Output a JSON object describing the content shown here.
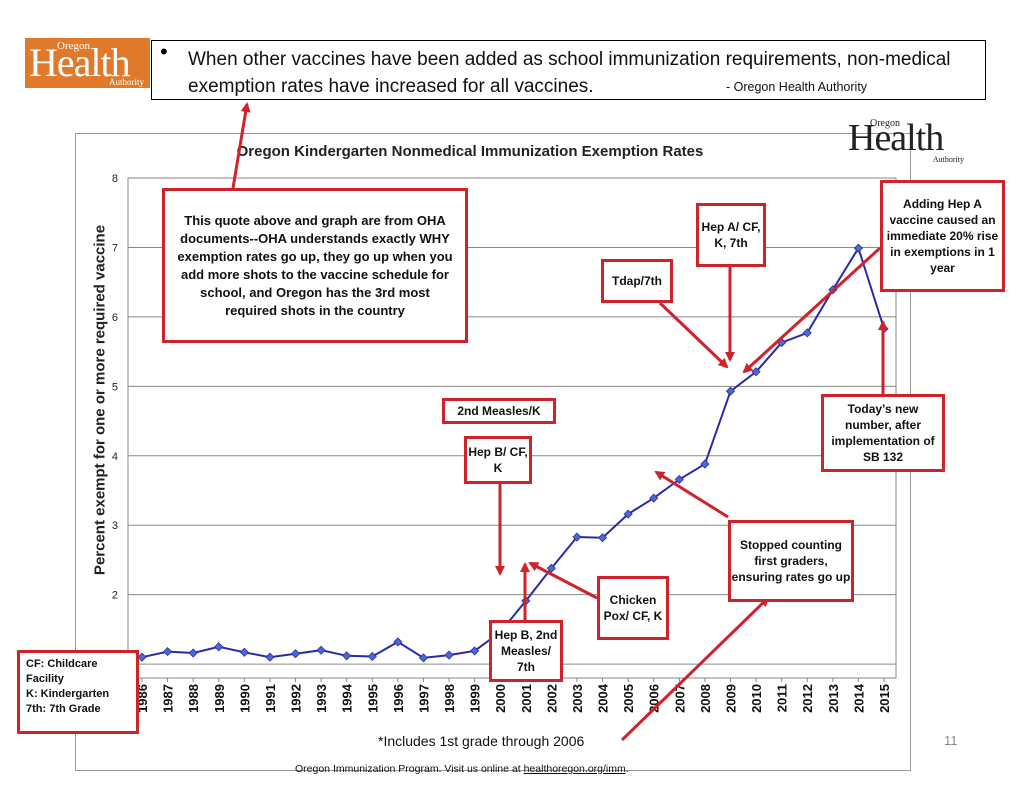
{
  "quote": {
    "text": "When other vaccines have been added as school immunization requirements, non-medical exemption rates have increased for all vaccines.",
    "source": "- Oregon Health Authority"
  },
  "logo": {
    "small": "Oregon",
    "big": "Health",
    "sub": "Authority"
  },
  "chart_data": {
    "type": "line",
    "title": "Oregon Kindergarten Nonmedical Immunization Exemption Rates",
    "ylabel": "Percent exempt for one or more required vaccine",
    "xlabel": "*Includes 1st grade through 2006",
    "ylim": [
      0.8,
      8
    ],
    "yticks": [
      "1",
      "2",
      "3",
      "4",
      "5",
      "6",
      "7",
      "8"
    ],
    "categories": [
      "1986",
      "1987",
      "1988",
      "1989",
      "1990",
      "1991",
      "1992",
      "1993",
      "1994",
      "1995",
      "1996",
      "1997",
      "1998",
      "1999",
      "2000",
      "2001",
      "2002",
      "2003",
      "2004",
      "2005",
      "2006",
      "2007",
      "2008",
      "2009",
      "2010",
      "2011",
      "2012",
      "2013",
      "2014",
      "2015"
    ],
    "values": [
      1.1,
      1.18,
      1.16,
      1.25,
      1.17,
      1.1,
      1.15,
      1.2,
      1.12,
      1.11,
      1.32,
      1.09,
      1.13,
      1.19,
      1.46,
      1.91,
      2.38,
      2.83,
      2.82,
      3.16,
      3.39,
      3.66,
      3.88,
      4.93,
      5.21,
      5.63,
      5.77,
      6.39,
      6.99,
      5.83
    ],
    "grid": true,
    "line_color": "#2a2aa8"
  },
  "annotations": {
    "quote_note": "This quote above and graph are from OHA documents--OHA understands exactly WHY exemption rates go up, they go up when you add more shots to the vaccine schedule for school, and Oregon has the 3rd most required shots in the country",
    "measles": "2nd Measles/K",
    "hepb_k": "Hep B/ CF, K",
    "hepb_7": "Hep B, 2nd Measles/ 7th",
    "chickenpox": "Chicken Pox/ CF, K",
    "tdap": "Tdap/7th",
    "hepa": "Hep A/ CF, K, 7th",
    "hepa_rise": "Adding Hep A vaccine caused an immediate 20% rise in exemptions in 1 year",
    "new_number": "Today’s new number, after implementation of SB 132",
    "stopped": "Stopped counting first graders, ensuring rates go up"
  },
  "legend": {
    "cf": "CF: Childcare Facility",
    "k": "K: Kindergarten",
    "seventh": "7th: 7th Grade"
  },
  "footer": {
    "text": "Oregon Immunization Program. Visit us online at ",
    "link": "healthoregon.org/imm",
    "end": "."
  },
  "page_number": "11",
  "colors": {
    "accent_red": "#d0222a",
    "logo_orange": "#e07a2a",
    "series_blue": "#2a2aa8"
  }
}
